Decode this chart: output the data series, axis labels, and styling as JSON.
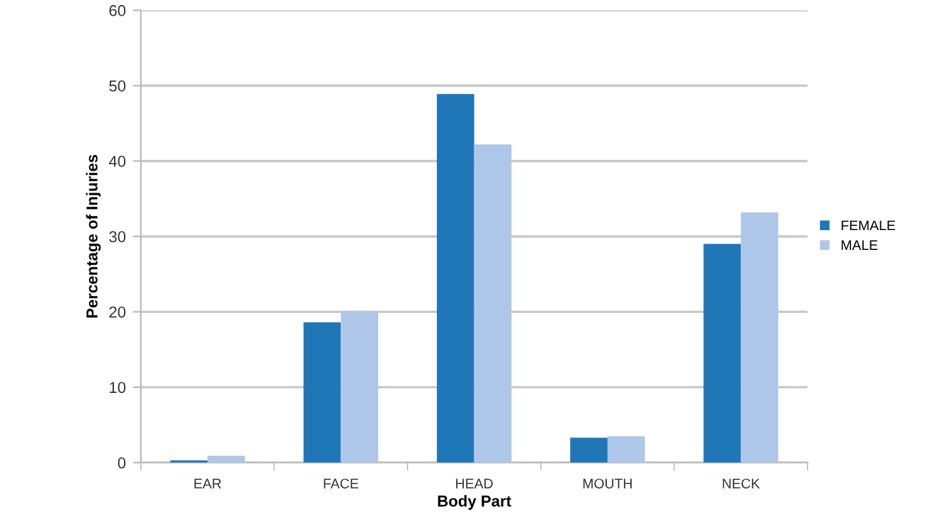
{
  "chart_data": {
    "type": "bar",
    "xlabel": "Body Part",
    "ylabel": "Percentage of Injuries",
    "categories": [
      "EAR",
      "FACE",
      "HEAD",
      "MOUTH",
      "NECK"
    ],
    "series": [
      {
        "name": "FEMALE",
        "color": "#2077b8",
        "values": [
          0.3,
          18.6,
          48.9,
          3.3,
          29.0
        ]
      },
      {
        "name": "MALE",
        "color": "#aec7e8",
        "values": [
          0.9,
          20.1,
          42.2,
          3.5,
          33.2
        ]
      }
    ],
    "ylim": [
      0,
      60
    ],
    "yticks": [
      0,
      10,
      20,
      30,
      40,
      50,
      60
    ],
    "grid": "y",
    "legend": "right"
  }
}
